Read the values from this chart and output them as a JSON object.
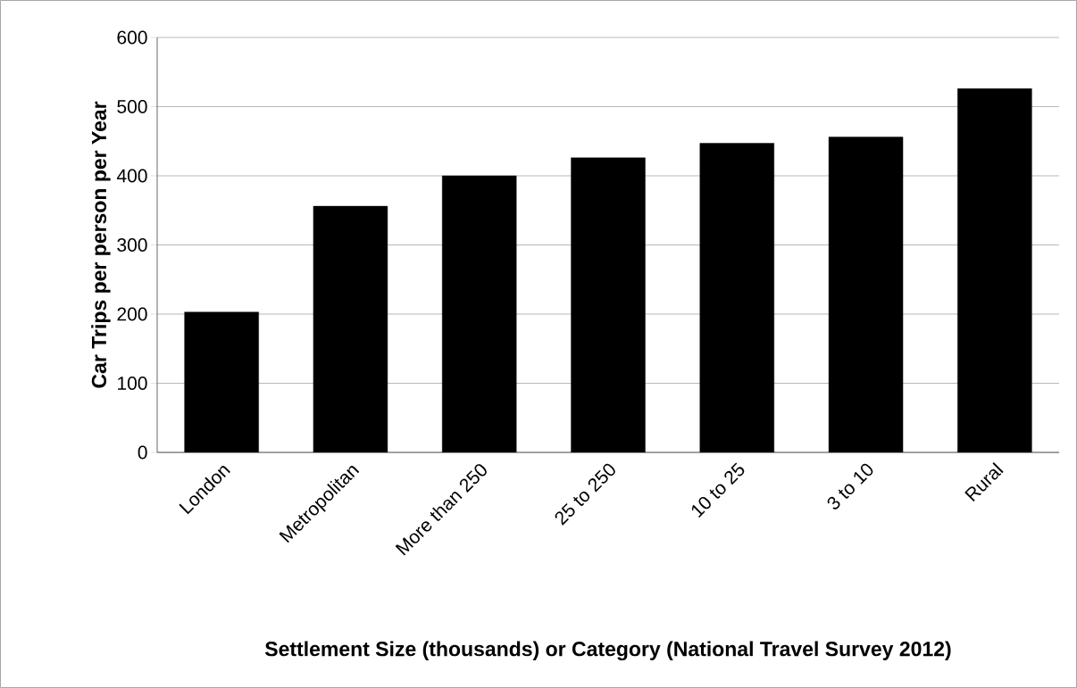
{
  "chart_data": {
    "type": "bar",
    "xlabel": "Settlement Size (thousands) or Category (National Travel Survey 2012)",
    "ylabel": "Car Trips per person per Year",
    "categories": [
      "London",
      "Metropolitan",
      "More than 250",
      "25 to 250",
      "10 to 25",
      "3 to 10",
      "Rural"
    ],
    "values": [
      203,
      356,
      400,
      426,
      447,
      456,
      526
    ],
    "color": "#000000",
    "ylim": [
      0,
      600
    ],
    "yticks": [
      0,
      100,
      200,
      300,
      400,
      500,
      600
    ],
    "grid": "y"
  }
}
